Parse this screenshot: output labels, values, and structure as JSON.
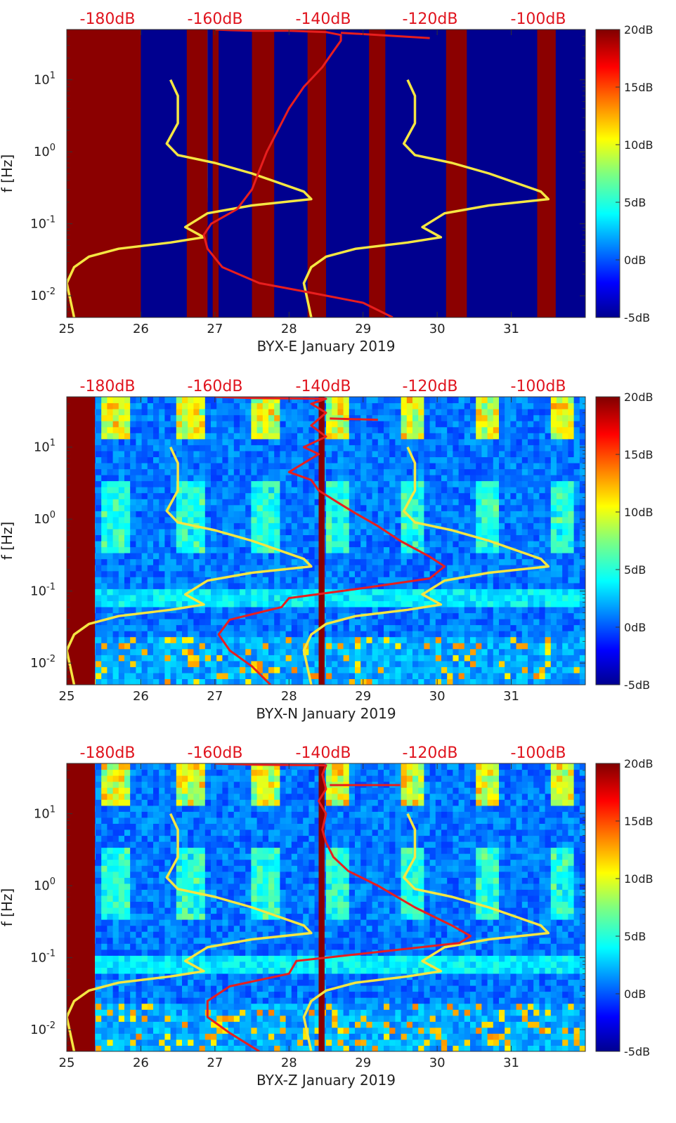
{
  "figure": {
    "colormap": "jet",
    "background": "#00008f"
  },
  "chart_data": [
    {
      "type": "heatmap",
      "title": "BYX-E January 2019",
      "xlabel": "BYX-E January 2019",
      "ylabel": "f [Hz]",
      "xlim": [
        25,
        32
      ],
      "ylim": [
        0.005,
        50
      ],
      "yscale": "log",
      "x_ticks": [
        "25",
        "26",
        "27",
        "28",
        "29",
        "30",
        "31"
      ],
      "y_ticks": [
        "10-2",
        "10-1",
        "100",
        "101"
      ],
      "top_axis_labels": [
        "-180dB",
        "-160dB",
        "-140dB",
        "-120dB",
        "-100dB"
      ],
      "colorbar": {
        "range_db": [
          -5,
          20
        ],
        "tick_labels": [
          "20dB",
          "15dB",
          "10dB",
          "5dB",
          "0dB",
          "-5dB"
        ]
      },
      "saturated_bands": [
        [
          25,
          26.0
        ],
        [
          26.62,
          26.9
        ],
        [
          26.97,
          27.05
        ],
        [
          27.5,
          27.8
        ],
        [
          28.25,
          28.5
        ],
        [
          29.08,
          29.3
        ],
        [
          30.12,
          30.4
        ],
        [
          31.35,
          31.6
        ]
      ],
      "gap_color": "#00008f",
      "texture": "none",
      "model_curve": {
        "name": "yellow reference (dB scale)",
        "color": "#f5e642",
        "points": [
          [
            25.1,
            0.005
          ],
          [
            25.0,
            0.015
          ],
          [
            25.1,
            0.025
          ],
          [
            25.3,
            0.035
          ],
          [
            25.7,
            0.045
          ],
          [
            26.4,
            0.055
          ],
          [
            26.85,
            0.065
          ],
          [
            26.6,
            0.09
          ],
          [
            26.9,
            0.14
          ],
          [
            27.5,
            0.18
          ],
          [
            28.3,
            0.22
          ],
          [
            28.2,
            0.28
          ],
          [
            27.5,
            0.5
          ],
          [
            27.0,
            0.7
          ],
          [
            26.5,
            0.9
          ],
          [
            26.35,
            1.3
          ],
          [
            26.5,
            2.5
          ],
          [
            26.5,
            6
          ],
          [
            26.4,
            10
          ]
        ],
        "points_shifted_by": 3.2
      },
      "measured_curve": {
        "name": "measured PSD (dB scale)",
        "color": "#e81e1e",
        "points": [
          [
            29.4,
            0.005
          ],
          [
            29.0,
            0.008
          ],
          [
            28.3,
            0.011
          ],
          [
            27.6,
            0.015
          ],
          [
            27.1,
            0.025
          ],
          [
            26.9,
            0.045
          ],
          [
            26.85,
            0.07
          ],
          [
            26.95,
            0.1
          ],
          [
            27.3,
            0.16
          ],
          [
            27.5,
            0.3
          ],
          [
            27.6,
            0.55
          ],
          [
            27.7,
            1.0
          ],
          [
            27.85,
            2.0
          ],
          [
            28.0,
            4.0
          ],
          [
            28.2,
            8.0
          ],
          [
            28.45,
            15
          ],
          [
            28.6,
            25
          ],
          [
            28.7,
            35
          ],
          [
            28.7,
            42
          ],
          [
            28.5,
            46
          ],
          [
            28.0,
            48
          ],
          [
            27.5,
            48
          ],
          [
            27.2,
            49
          ],
          [
            27.0,
            50
          ]
        ],
        "extra_segment": [
          [
            28.7,
            45
          ],
          [
            29.9,
            38
          ]
        ]
      }
    },
    {
      "type": "heatmap",
      "title": "BYX-N January 2019",
      "xlabel": "BYX-N January 2019",
      "ylabel": "f [Hz]",
      "xlim": [
        25,
        32
      ],
      "ylim": [
        0.005,
        50
      ],
      "yscale": "log",
      "x_ticks": [
        "25",
        "26",
        "27",
        "28",
        "29",
        "30",
        "31"
      ],
      "y_ticks": [
        "10-2",
        "10-1",
        "100",
        "101"
      ],
      "top_axis_labels": [
        "-180dB",
        "-160dB",
        "-140dB",
        "-120dB",
        "-100dB"
      ],
      "colorbar": {
        "range_db": [
          -5,
          20
        ],
        "tick_labels": [
          "20dB",
          "15dB",
          "10dB",
          "5dB",
          "0dB",
          "-5dB"
        ]
      },
      "saturated_bands": [
        [
          25,
          25.38
        ],
        [
          28.4,
          28.48
        ]
      ],
      "gap_color": "#0a2ad0",
      "texture": "noise",
      "model_curve": {
        "name": "yellow reference (dB scale)",
        "color": "#f5e642",
        "points": [
          [
            25.1,
            0.005
          ],
          [
            25.0,
            0.015
          ],
          [
            25.1,
            0.025
          ],
          [
            25.3,
            0.035
          ],
          [
            25.7,
            0.045
          ],
          [
            26.4,
            0.055
          ],
          [
            26.85,
            0.065
          ],
          [
            26.6,
            0.09
          ],
          [
            26.9,
            0.14
          ],
          [
            27.5,
            0.18
          ],
          [
            28.3,
            0.22
          ],
          [
            28.2,
            0.28
          ],
          [
            27.5,
            0.5
          ],
          [
            27.0,
            0.7
          ],
          [
            26.5,
            0.9
          ],
          [
            26.35,
            1.3
          ],
          [
            26.5,
            2.5
          ],
          [
            26.5,
            6
          ],
          [
            26.4,
            10
          ]
        ],
        "points_shifted_by": 3.2
      },
      "measured_curve": {
        "name": "measured PSD (dB scale)",
        "color": "#e81e1e",
        "points": [
          [
            27.75,
            0.005
          ],
          [
            27.5,
            0.009
          ],
          [
            27.2,
            0.015
          ],
          [
            27.05,
            0.025
          ],
          [
            27.2,
            0.04
          ],
          [
            27.9,
            0.06
          ],
          [
            28.0,
            0.08
          ],
          [
            29.0,
            0.11
          ],
          [
            29.9,
            0.15
          ],
          [
            30.1,
            0.22
          ],
          [
            29.9,
            0.3
          ],
          [
            29.5,
            0.5
          ],
          [
            29.2,
            0.8
          ],
          [
            28.9,
            1.2
          ],
          [
            28.7,
            1.6
          ],
          [
            28.4,
            2.5
          ],
          [
            28.3,
            3.5
          ],
          [
            28.0,
            4.5
          ],
          [
            28.2,
            6
          ],
          [
            28.4,
            8
          ],
          [
            28.2,
            10
          ],
          [
            28.5,
            14
          ],
          [
            28.3,
            20
          ],
          [
            28.5,
            30
          ],
          [
            28.3,
            40
          ],
          [
            28.5,
            47
          ],
          [
            27.5,
            48
          ],
          [
            27.0,
            50
          ]
        ],
        "extra_segment": [
          [
            28.55,
            25
          ],
          [
            29.2,
            24
          ]
        ]
      }
    },
    {
      "type": "heatmap",
      "title": "BYX-Z January 2019",
      "xlabel": "BYX-Z January 2019",
      "ylabel": "f [Hz]",
      "xlim": [
        25,
        32
      ],
      "ylim": [
        0.005,
        50
      ],
      "yscale": "log",
      "x_ticks": [
        "25",
        "26",
        "27",
        "28",
        "29",
        "30",
        "31"
      ],
      "y_ticks": [
        "10-2",
        "10-1",
        "100",
        "101"
      ],
      "top_axis_labels": [
        "-180dB",
        "-160dB",
        "-140dB",
        "-120dB",
        "-100dB"
      ],
      "colorbar": {
        "range_db": [
          -5,
          20
        ],
        "tick_labels": [
          "20dB",
          "15dB",
          "10dB",
          "5dB",
          "0dB",
          "-5dB"
        ]
      },
      "saturated_bands": [
        [
          25,
          25.38
        ],
        [
          28.4,
          28.48
        ]
      ],
      "gap_color": "#0a2ad0",
      "texture": "noise",
      "model_curve": {
        "name": "yellow reference (dB scale)",
        "color": "#f5e642",
        "points": [
          [
            25.1,
            0.005
          ],
          [
            25.0,
            0.015
          ],
          [
            25.1,
            0.025
          ],
          [
            25.3,
            0.035
          ],
          [
            25.7,
            0.045
          ],
          [
            26.4,
            0.055
          ],
          [
            26.85,
            0.065
          ],
          [
            26.6,
            0.09
          ],
          [
            26.9,
            0.14
          ],
          [
            27.5,
            0.18
          ],
          [
            28.3,
            0.22
          ],
          [
            28.2,
            0.28
          ],
          [
            27.5,
            0.5
          ],
          [
            27.0,
            0.7
          ],
          [
            26.5,
            0.9
          ],
          [
            26.35,
            1.3
          ],
          [
            26.5,
            2.5
          ],
          [
            26.5,
            6
          ],
          [
            26.4,
            10
          ]
        ],
        "points_shifted_by": 3.2
      },
      "measured_curve": {
        "name": "measured PSD (dB scale)",
        "color": "#e81e1e",
        "points": [
          [
            27.6,
            0.005
          ],
          [
            27.2,
            0.009
          ],
          [
            26.9,
            0.015
          ],
          [
            26.9,
            0.025
          ],
          [
            27.2,
            0.04
          ],
          [
            28.0,
            0.06
          ],
          [
            28.1,
            0.09
          ],
          [
            29.2,
            0.12
          ],
          [
            30.3,
            0.16
          ],
          [
            30.45,
            0.2
          ],
          [
            30.2,
            0.28
          ],
          [
            29.7,
            0.5
          ],
          [
            29.2,
            1.0
          ],
          [
            28.8,
            1.6
          ],
          [
            28.6,
            2.5
          ],
          [
            28.5,
            4
          ],
          [
            28.45,
            6
          ],
          [
            28.5,
            10
          ],
          [
            28.4,
            15
          ],
          [
            28.5,
            22
          ],
          [
            28.45,
            35
          ],
          [
            28.5,
            47
          ],
          [
            27.5,
            48
          ],
          [
            27.0,
            50
          ]
        ],
        "extra_segment": [
          [
            28.55,
            25
          ],
          [
            29.5,
            25
          ]
        ]
      }
    }
  ]
}
